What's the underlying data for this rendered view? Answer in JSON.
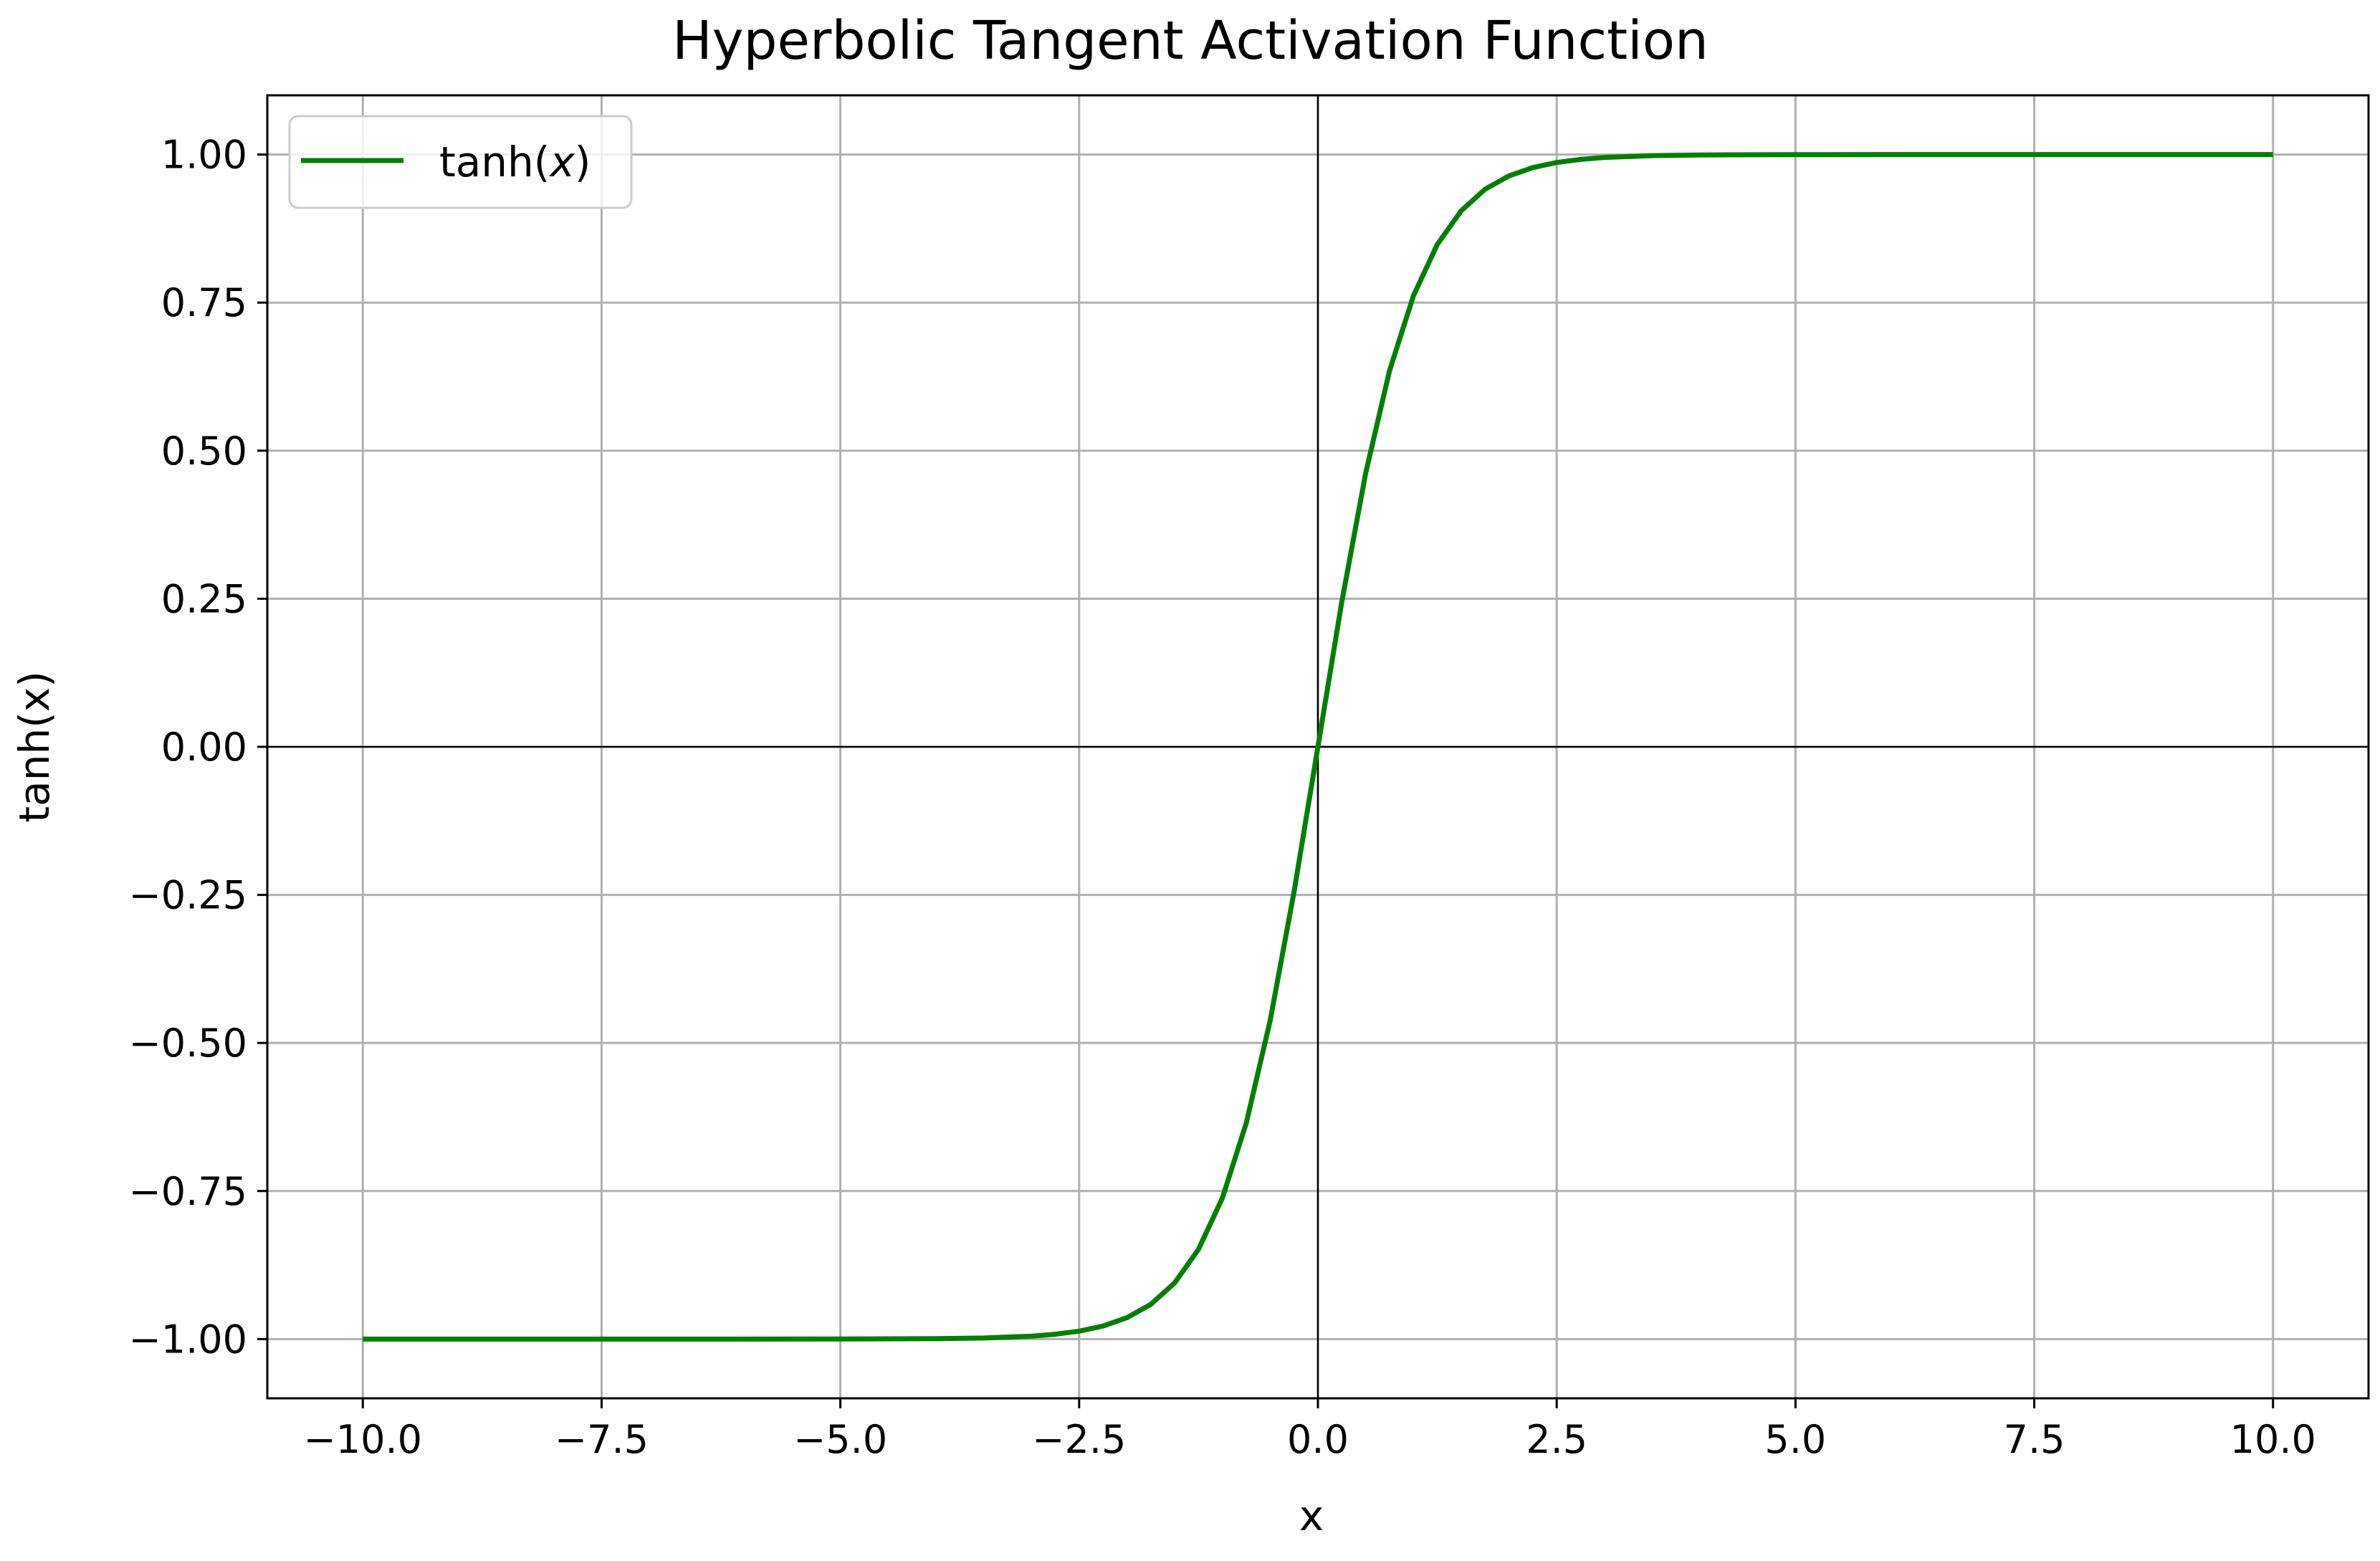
{
  "chart_data": {
    "type": "line",
    "title": "Hyperbolic Tangent Activation Function",
    "xlabel": "x",
    "ylabel": "tanh(x)",
    "xlim": [
      -11.0,
      11.0
    ],
    "ylim": [
      -1.1,
      1.1
    ],
    "x_ticks": [
      -10.0,
      -7.5,
      -5.0,
      -2.5,
      0.0,
      2.5,
      5.0,
      7.5,
      10.0
    ],
    "x_tick_labels": [
      "−10.0",
      "−7.5",
      "−5.0",
      "−2.5",
      "0.0",
      "2.5",
      "5.0",
      "7.5",
      "10.0"
    ],
    "y_ticks": [
      -1.0,
      -0.75,
      -0.5,
      -0.25,
      0.0,
      0.25,
      0.5,
      0.75,
      1.0
    ],
    "y_tick_labels": [
      "−1.00",
      "−0.75",
      "−0.50",
      "−0.25",
      "0.00",
      "0.25",
      "0.50",
      "0.75",
      "1.00"
    ],
    "grid": true,
    "reference_lines": {
      "x": 0,
      "y": 0
    },
    "legend": {
      "position": "top-left",
      "entry_prefix": "tanh(",
      "entry_var": "x",
      "entry_suffix": ")"
    },
    "series": [
      {
        "name": "tanh(x)",
        "color": "#008000",
        "x": [
          -10.0,
          -9.0,
          -8.0,
          -7.0,
          -6.0,
          -5.0,
          -4.0,
          -3.5,
          -3.0,
          -2.75,
          -2.5,
          -2.25,
          -2.0,
          -1.75,
          -1.5,
          -1.25,
          -1.0,
          -0.75,
          -0.5,
          -0.25,
          0.0,
          0.25,
          0.5,
          0.75,
          1.0,
          1.25,
          1.5,
          1.75,
          2.0,
          2.25,
          2.5,
          2.75,
          3.0,
          3.5,
          4.0,
          5.0,
          6.0,
          7.0,
          8.0,
          9.0,
          10.0
        ],
        "y": [
          -1.0,
          -1.0,
          -1.0,
          -1.0,
          -1.0,
          -0.9999,
          -0.9993,
          -0.9982,
          -0.9951,
          -0.9918,
          -0.9866,
          -0.978,
          -0.964,
          -0.9414,
          -0.9051,
          -0.8483,
          -0.7616,
          -0.6351,
          -0.4621,
          -0.2449,
          0.0,
          0.2449,
          0.4621,
          0.6351,
          0.7616,
          0.8483,
          0.9051,
          0.9414,
          0.964,
          0.978,
          0.9866,
          0.9918,
          0.9951,
          0.9982,
          0.9993,
          0.9999,
          1.0,
          1.0,
          1.0,
          1.0,
          1.0
        ]
      }
    ]
  }
}
